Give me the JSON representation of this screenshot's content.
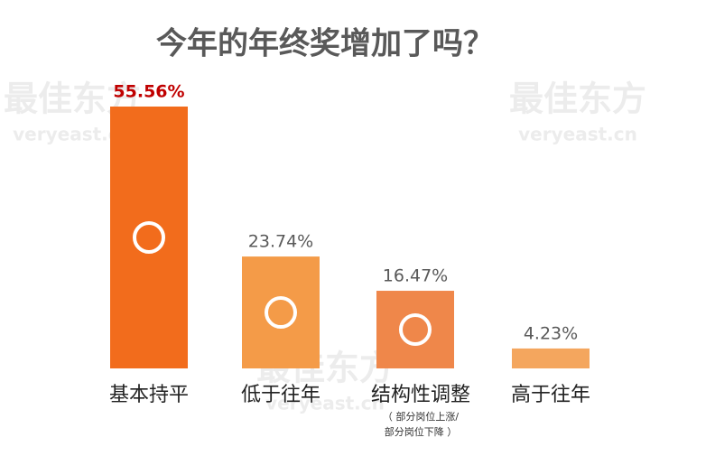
{
  "chart_data": {
    "type": "bar",
    "title": "今年的年终奖增加了吗？",
    "categories": [
      "基本持平",
      "低于往年",
      "结构性调整",
      "高于往年"
    ],
    "values": [
      55.56,
      23.74,
      16.47,
      4.23
    ],
    "value_labels": [
      "55.56%",
      "23.74%",
      "16.47%",
      "4.23%"
    ],
    "colors": [
      "#f26c1c",
      "#f49b48",
      "#ef874a",
      "#f4a65e"
    ],
    "value_label_colors": [
      "#c00000",
      "#595959",
      "#595959",
      "#595959"
    ],
    "annotation": [
      "（ 部分岗位上涨/",
      "部分岗位下降 ）"
    ],
    "watermark": [
      "最佳东方",
      "veryeast.cn"
    ]
  }
}
